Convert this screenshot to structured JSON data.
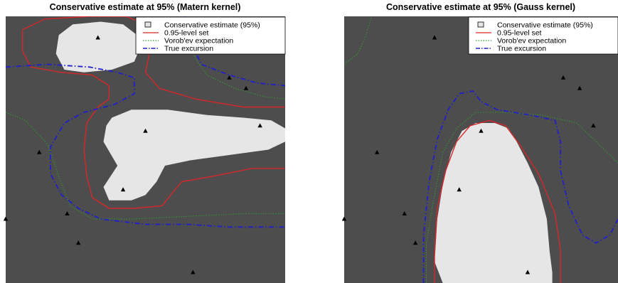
{
  "colors": {
    "background": "#4d4d4d",
    "conservative": "#e6e6e6",
    "level_set": "#d62728",
    "vorobev": "#2ca02c",
    "true_excursion": "#1f1fcc",
    "points": "#000000"
  },
  "chart_data": [
    {
      "type": "heatmap",
      "title": "Conservative estimate at 95% (Matern kernel)",
      "xlim": [
        0,
        1
      ],
      "ylim": [
        0,
        1
      ],
      "legend_position": "top-right",
      "legend": [
        {
          "label": "Conservative estimate (95%)",
          "style": "box"
        },
        {
          "label": "0.95-level set",
          "style": "solid"
        },
        {
          "label": "Vorob'ev expectation",
          "style": "dotted"
        },
        {
          "label": "True excursion",
          "style": "dashdot"
        }
      ],
      "design_points": [
        {
          "x": 0.33,
          "y": 0.92
        },
        {
          "x": 0.8,
          "y": 0.77
        },
        {
          "x": 0.86,
          "y": 0.73
        },
        {
          "x": 0.91,
          "y": 0.59
        },
        {
          "x": 0.5,
          "y": 0.57
        },
        {
          "x": 0.12,
          "y": 0.49
        },
        {
          "x": 0.42,
          "y": 0.35
        },
        {
          "x": 0.22,
          "y": 0.26
        },
        {
          "x": 0.0,
          "y": 0.24
        },
        {
          "x": 0.26,
          "y": 0.15
        },
        {
          "x": 0.67,
          "y": 0.04
        }
      ],
      "conservative_regions": [
        [
          [
            0.18,
            0.86
          ],
          [
            0.21,
            0.8
          ],
          [
            0.28,
            0.79
          ],
          [
            0.38,
            0.8
          ],
          [
            0.46,
            0.83
          ],
          [
            0.48,
            0.88
          ],
          [
            0.47,
            0.93
          ],
          [
            0.42,
            0.97
          ],
          [
            0.34,
            0.98
          ],
          [
            0.24,
            0.97
          ],
          [
            0.19,
            0.93
          ]
        ],
        [
          [
            0.38,
            0.62
          ],
          [
            0.45,
            0.65
          ],
          [
            0.58,
            0.65
          ],
          [
            0.72,
            0.63
          ],
          [
            0.85,
            0.62
          ],
          [
            0.95,
            0.61
          ],
          [
            1.0,
            0.58
          ],
          [
            1.0,
            0.53
          ],
          [
            0.94,
            0.5
          ],
          [
            0.8,
            0.48
          ],
          [
            0.66,
            0.46
          ],
          [
            0.57,
            0.44
          ],
          [
            0.54,
            0.38
          ],
          [
            0.5,
            0.33
          ],
          [
            0.45,
            0.31
          ],
          [
            0.37,
            0.31
          ],
          [
            0.35,
            0.36
          ],
          [
            0.4,
            0.44
          ],
          [
            0.35,
            0.53
          ],
          [
            0.36,
            0.59
          ]
        ]
      ],
      "level_set": [
        [
          [
            0.06,
            0.95
          ],
          [
            0.14,
            0.99
          ],
          [
            0.3,
            1.0
          ],
          [
            0.43,
            1.0
          ],
          [
            0.5,
            0.97
          ],
          [
            0.52,
            0.89
          ],
          [
            0.5,
            0.79
          ],
          [
            0.55,
            0.73
          ],
          [
            0.68,
            0.69
          ],
          [
            0.85,
            0.66
          ],
          [
            1.0,
            0.66
          ]
        ],
        [
          [
            1.0,
            0.43
          ],
          [
            0.88,
            0.43
          ],
          [
            0.74,
            0.4
          ],
          [
            0.63,
            0.38
          ],
          [
            0.59,
            0.33
          ],
          [
            0.56,
            0.29
          ],
          [
            0.46,
            0.28
          ],
          [
            0.37,
            0.28
          ],
          [
            0.31,
            0.32
          ],
          [
            0.29,
            0.4
          ],
          [
            0.28,
            0.5
          ],
          [
            0.29,
            0.6
          ],
          [
            0.33,
            0.66
          ],
          [
            0.37,
            0.69
          ],
          [
            0.37,
            0.74
          ],
          [
            0.31,
            0.78
          ],
          [
            0.2,
            0.79
          ],
          [
            0.09,
            0.81
          ],
          [
            0.06,
            0.87
          ],
          [
            0.06,
            0.95
          ]
        ]
      ],
      "vorobev": [
        [
          [
            0.0,
            0.64
          ],
          [
            0.07,
            0.61
          ],
          [
            0.15,
            0.52
          ],
          [
            0.19,
            0.4
          ],
          [
            0.23,
            0.29
          ],
          [
            0.31,
            0.24
          ],
          [
            0.45,
            0.24
          ],
          [
            0.65,
            0.25
          ],
          [
            0.85,
            0.26
          ],
          [
            1.0,
            0.26
          ]
        ],
        [
          [
            0.62,
            1.0
          ],
          [
            0.65,
            0.92
          ],
          [
            0.68,
            0.84
          ],
          [
            0.72,
            0.78
          ],
          [
            0.82,
            0.73
          ],
          [
            0.92,
            0.7
          ],
          [
            1.0,
            0.69
          ]
        ]
      ],
      "true_excursion": [
        [
          [
            0.0,
            0.81
          ],
          [
            0.15,
            0.82
          ],
          [
            0.3,
            0.81
          ],
          [
            0.4,
            0.79
          ],
          [
            0.46,
            0.77
          ],
          [
            0.46,
            0.71
          ],
          [
            0.39,
            0.67
          ],
          [
            0.28,
            0.64
          ],
          [
            0.21,
            0.6
          ],
          [
            0.16,
            0.51
          ],
          [
            0.16,
            0.41
          ],
          [
            0.2,
            0.33
          ],
          [
            0.26,
            0.28
          ],
          [
            0.34,
            0.24
          ],
          [
            0.5,
            0.22
          ],
          [
            0.65,
            0.22
          ],
          [
            0.8,
            0.21
          ],
          [
            1.0,
            0.21
          ]
        ],
        [
          [
            0.64,
            1.0
          ],
          [
            0.66,
            0.91
          ],
          [
            0.7,
            0.82
          ],
          [
            0.8,
            0.78
          ],
          [
            0.9,
            0.75
          ],
          [
            1.0,
            0.74
          ]
        ]
      ]
    },
    {
      "type": "heatmap",
      "title": "Conservative estimate at 95% (Gauss kernel)",
      "xlim": [
        0,
        1
      ],
      "ylim": [
        0,
        1
      ],
      "legend_position": "top-right",
      "legend": [
        {
          "label": "Conservative estimate (95%)",
          "style": "box"
        },
        {
          "label": "0.95-level set",
          "style": "solid"
        },
        {
          "label": "Vorob'ev expectation",
          "style": "dotted"
        },
        {
          "label": "True excursion",
          "style": "dashdot"
        }
      ],
      "design_points": [
        {
          "x": 0.33,
          "y": 0.92
        },
        {
          "x": 0.8,
          "y": 0.77
        },
        {
          "x": 0.86,
          "y": 0.73
        },
        {
          "x": 0.91,
          "y": 0.59
        },
        {
          "x": 0.5,
          "y": 0.57
        },
        {
          "x": 0.12,
          "y": 0.49
        },
        {
          "x": 0.42,
          "y": 0.35
        },
        {
          "x": 0.22,
          "y": 0.26
        },
        {
          "x": 0.0,
          "y": 0.24
        },
        {
          "x": 0.26,
          "y": 0.15
        },
        {
          "x": 0.67,
          "y": 0.04
        }
      ],
      "conservative_regions": [
        [
          [
            0.36,
            0.0
          ],
          [
            0.33,
            0.08
          ],
          [
            0.34,
            0.24
          ],
          [
            0.36,
            0.37
          ],
          [
            0.39,
            0.49
          ],
          [
            0.43,
            0.57
          ],
          [
            0.48,
            0.6
          ],
          [
            0.55,
            0.6
          ],
          [
            0.6,
            0.58
          ],
          [
            0.63,
            0.53
          ],
          [
            0.67,
            0.45
          ],
          [
            0.71,
            0.36
          ],
          [
            0.74,
            0.24
          ],
          [
            0.75,
            0.12
          ],
          [
            0.76,
            0.04
          ],
          [
            0.76,
            0.0
          ]
        ]
      ],
      "level_set": [
        [
          [
            0.33,
            0.0
          ],
          [
            0.33,
            0.1
          ],
          [
            0.34,
            0.28
          ],
          [
            0.37,
            0.42
          ],
          [
            0.41,
            0.53
          ],
          [
            0.46,
            0.59
          ],
          [
            0.53,
            0.61
          ],
          [
            0.59,
            0.59
          ],
          [
            0.64,
            0.52
          ],
          [
            0.71,
            0.41
          ],
          [
            0.77,
            0.26
          ],
          [
            0.79,
            0.12
          ],
          [
            0.79,
            0.0
          ]
        ]
      ],
      "vorobev": [
        [
          [
            0.3,
            0.0
          ],
          [
            0.3,
            0.15
          ],
          [
            0.33,
            0.33
          ],
          [
            0.36,
            0.49
          ],
          [
            0.41,
            0.58
          ],
          [
            0.48,
            0.64
          ],
          [
            0.58,
            0.64
          ],
          [
            0.72,
            0.63
          ],
          [
            0.85,
            0.6
          ],
          [
            0.93,
            0.52
          ],
          [
            1.0,
            0.45
          ]
        ],
        [
          [
            0.0,
            0.82
          ],
          [
            0.05,
            0.86
          ],
          [
            0.08,
            0.93
          ],
          [
            0.1,
            1.0
          ]
        ]
      ],
      "true_excursion": [
        [
          [
            0.29,
            0.0
          ],
          [
            0.29,
            0.18
          ],
          [
            0.31,
            0.38
          ],
          [
            0.34,
            0.54
          ],
          [
            0.38,
            0.65
          ],
          [
            0.42,
            0.71
          ],
          [
            0.47,
            0.72
          ],
          [
            0.5,
            0.68
          ],
          [
            0.56,
            0.65
          ],
          [
            0.68,
            0.63
          ],
          [
            0.77,
            0.61
          ],
          [
            0.79,
            0.53
          ],
          [
            0.79,
            0.42
          ],
          [
            0.82,
            0.29
          ],
          [
            0.87,
            0.18
          ],
          [
            0.92,
            0.15
          ],
          [
            0.97,
            0.18
          ],
          [
            1.0,
            0.24
          ]
        ]
      ]
    }
  ]
}
